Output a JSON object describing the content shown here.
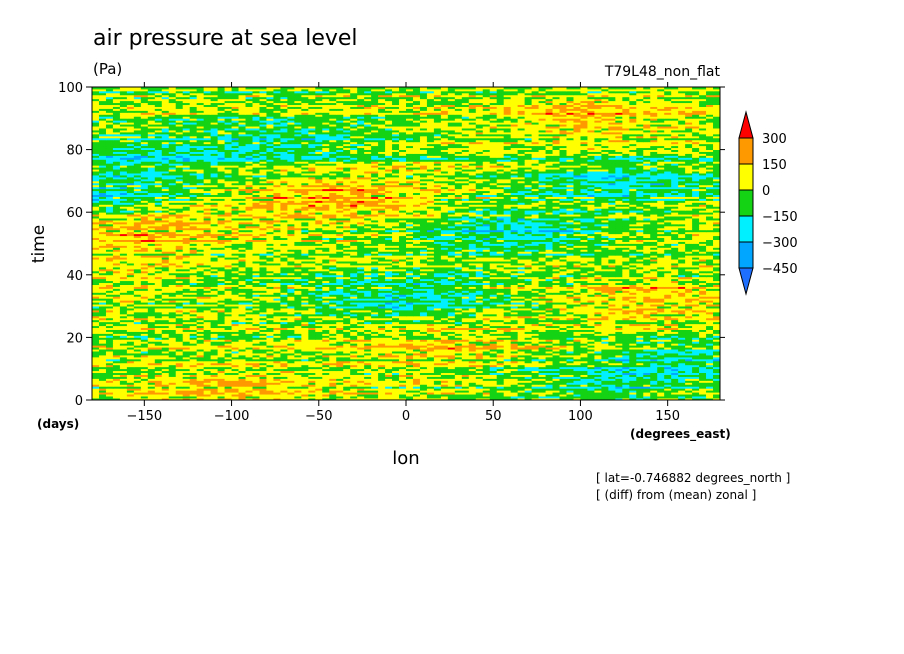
{
  "chart_data": {
    "type": "heatmap",
    "title": "air pressure at sea level",
    "units": "(Pa)",
    "run_label": "T79L48_non_flat",
    "xlabel": "lon",
    "xunits": "(degrees_east)",
    "ylabel": "time",
    "yunits": "(days)",
    "xlim": [
      -180,
      180
    ],
    "ylim": [
      0,
      100
    ],
    "xticks": [
      -150,
      -100,
      -50,
      0,
      50,
      100,
      150
    ],
    "yticks": [
      0,
      20,
      40,
      60,
      80,
      100
    ],
    "colorbar": {
      "levels": [
        -450,
        -300,
        -150,
        0,
        150,
        300
      ],
      "colors": [
        "#1f6fff",
        "#00a6ff",
        "#00f0ff",
        "#14d214",
        "#ffff00",
        "#ff9900",
        "#ff0000"
      ]
    },
    "annotations": [
      "[ lat=-0.746882 degrees_north ]",
      "[ (diff) from (mean) zonal ]"
    ],
    "field_features": [
      {
        "lon": 110,
        "time": 90,
        "value": 160
      },
      {
        "lon": -40,
        "time": 65,
        "value": 200
      },
      {
        "lon": -150,
        "time": 55,
        "value": 180
      },
      {
        "lon": -170,
        "time": 40,
        "value": 120
      },
      {
        "lon": 140,
        "time": 33,
        "value": 150
      },
      {
        "lon": 20,
        "time": 18,
        "value": 120
      },
      {
        "lon": -100,
        "time": 3,
        "value": 120
      },
      {
        "lon": -180,
        "time": 64,
        "value": -200
      },
      {
        "lon": -150,
        "time": 77,
        "value": -180
      },
      {
        "lon": -70,
        "time": 82,
        "value": -150
      },
      {
        "lon": 60,
        "time": 54,
        "value": -220
      },
      {
        "lon": 0,
        "time": 32,
        "value": -180
      },
      {
        "lon": 120,
        "time": 70,
        "value": -190
      },
      {
        "lon": 160,
        "time": 12,
        "value": -150
      },
      {
        "lon": 110,
        "time": 5,
        "value": -150
      }
    ]
  }
}
